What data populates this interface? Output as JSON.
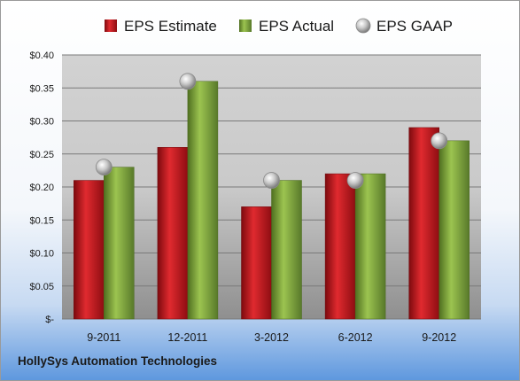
{
  "chart_data": {
    "type": "bar",
    "categories": [
      "9-2011",
      "12-2011",
      "3-2012",
      "6-2012",
      "9-2012"
    ],
    "series": [
      {
        "name": "EPS Estimate",
        "kind": "bar",
        "color": "#c0161c",
        "values": [
          0.21,
          0.26,
          0.17,
          0.22,
          0.29
        ]
      },
      {
        "name": "EPS Actual",
        "kind": "bar",
        "color": "#7ea63a",
        "values": [
          0.23,
          0.36,
          0.21,
          0.22,
          0.27
        ]
      },
      {
        "name": "EPS GAAP",
        "kind": "marker",
        "color": "#b8b8b8",
        "values": [
          0.23,
          0.36,
          0.21,
          0.21,
          0.27
        ]
      }
    ],
    "ylim": [
      0,
      0.4
    ],
    "y_ticks": [
      {
        "value": 0,
        "label": "$-"
      },
      {
        "value": 0.05,
        "label": "$0.05"
      },
      {
        "value": 0.1,
        "label": "$0.10"
      },
      {
        "value": 0.15,
        "label": "$0.15"
      },
      {
        "value": 0.2,
        "label": "$0.20"
      },
      {
        "value": 0.25,
        "label": "$0.25"
      },
      {
        "value": 0.3,
        "label": "$0.30"
      },
      {
        "value": 0.35,
        "label": "$0.35"
      },
      {
        "value": 0.4,
        "label": "$0.40"
      }
    ],
    "grid": true,
    "legend_position": "top"
  },
  "footer": {
    "company": "HollySys Automation Technologies"
  }
}
